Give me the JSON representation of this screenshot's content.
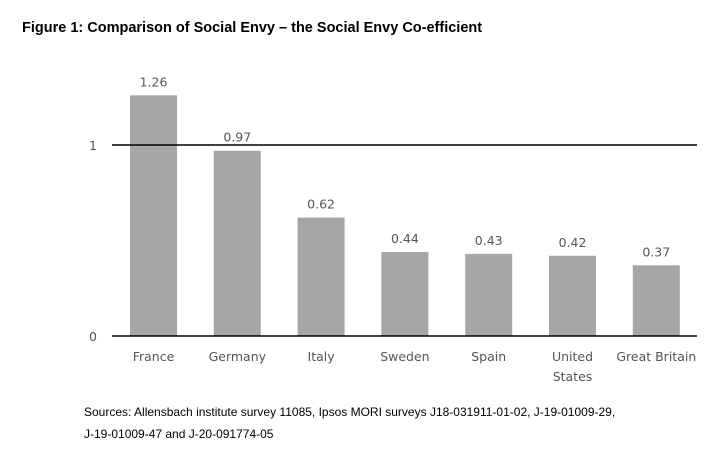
{
  "chart_data": {
    "type": "bar",
    "title": "Figure 1: Comparison of Social Envy – the Social Envy Co-efficient",
    "categories": [
      "France",
      "Germany",
      "Italy",
      "Sweden",
      "Spain",
      "United States",
      "Great Britain"
    ],
    "category_lines": [
      [
        "France"
      ],
      [
        "Germany"
      ],
      [
        "Italy"
      ],
      [
        "Sweden"
      ],
      [
        "Spain"
      ],
      [
        "United",
        "States"
      ],
      [
        "Great Britain"
      ]
    ],
    "values": [
      1.26,
      0.97,
      0.62,
      0.44,
      0.43,
      0.42,
      0.37
    ],
    "value_labels": [
      "1.26",
      "0.97",
      "0.62",
      "0.44",
      "0.43",
      "0.42",
      "0.37"
    ],
    "yticks": [
      0,
      1
    ],
    "ytick_labels": [
      "0",
      "1"
    ],
    "ylim": [
      0,
      1.3
    ],
    "xlabel": "",
    "ylabel": "",
    "grid": false,
    "bar_color": "#a6a6a6"
  },
  "sources": {
    "line1": "Sources: Allensbach institute survey 11085, Ipsos MORI surveys J18-031911-01-02, J-19-01009-29,",
    "line2": "J-19-01009-47 and J-20-091774-05"
  }
}
